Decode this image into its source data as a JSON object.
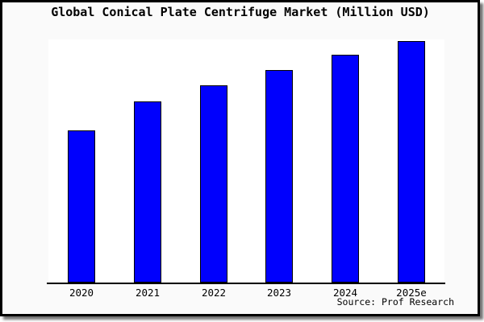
{
  "chart_data": {
    "type": "bar",
    "title": "Global Conical Plate Centrifuge Market (Million USD)",
    "categories": [
      "2020",
      "2021",
      "2022",
      "2023",
      "2024",
      "2025e"
    ],
    "values": [
      63.1,
      75.0,
      81.7,
      88.0,
      94.3,
      100.0
    ],
    "value_note": "relative index estimated from bar heights; no y-axis scale shown",
    "xlabel": "",
    "ylabel": "",
    "ylim": [
      0,
      101
    ],
    "grid": false,
    "legend": "none",
    "bar_count": 6
  },
  "source": {
    "text": "Source: Prof Research"
  },
  "colors": {
    "bar_fill": "#0000fd",
    "bar_border": "#000000",
    "background": "#fafafa",
    "plot_background": "#ffffff",
    "axis": "#000000",
    "frame_border": "#000000",
    "text": "#000000"
  }
}
